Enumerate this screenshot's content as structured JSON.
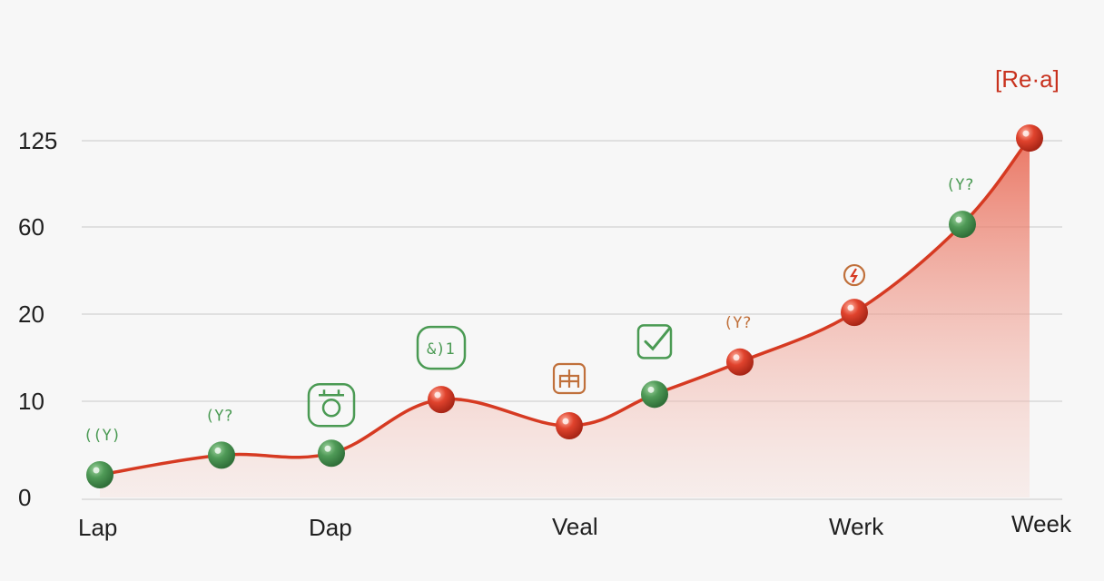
{
  "chart_data": {
    "type": "line",
    "y_ticks": [
      "0",
      "10",
      "20",
      "60",
      "125"
    ],
    "x_ticks": [
      "Lap",
      "Dap",
      "Veal",
      "Werk",
      "Week"
    ],
    "series_label": "[Re·a]",
    "grid": true,
    "area_fill": true,
    "points": [
      {
        "x": 1,
        "y": 2.5,
        "color": "green",
        "annotation": "((Y)",
        "icon": ""
      },
      {
        "x": 2,
        "y": 4.5,
        "color": "green",
        "annotation": "(Y?",
        "icon": ""
      },
      {
        "x": 3,
        "y": 4.7,
        "color": "green",
        "annotation": "",
        "icon": "lantern-icon"
      },
      {
        "x": 4,
        "y": 10.2,
        "color": "red",
        "annotation": "&)1",
        "icon": "badge"
      },
      {
        "x": 5,
        "y": 7.5,
        "color": "red",
        "annotation": "",
        "icon": "building-icon"
      },
      {
        "x": 6,
        "y": 10.8,
        "color": "green",
        "annotation": "",
        "icon": "check-icon"
      },
      {
        "x": 7,
        "y": 14.5,
        "color": "red",
        "annotation": "(Y?",
        "icon": ""
      },
      {
        "x": 8,
        "y": 20.8,
        "color": "red",
        "annotation": "",
        "icon": "lightning-icon"
      },
      {
        "x": 9,
        "y": 62,
        "color": "green",
        "annotation": "(Y?",
        "icon": ""
      },
      {
        "x": 10,
        "y": 127,
        "color": "red",
        "annotation": "",
        "icon": ""
      }
    ],
    "colors": {
      "line": "#d63a22",
      "green": "#4f9a57",
      "red": "#e0432d",
      "icon_green": "#4a9a53",
      "icon_brown": "#c0703b",
      "label_red": "#c8321e"
    }
  }
}
